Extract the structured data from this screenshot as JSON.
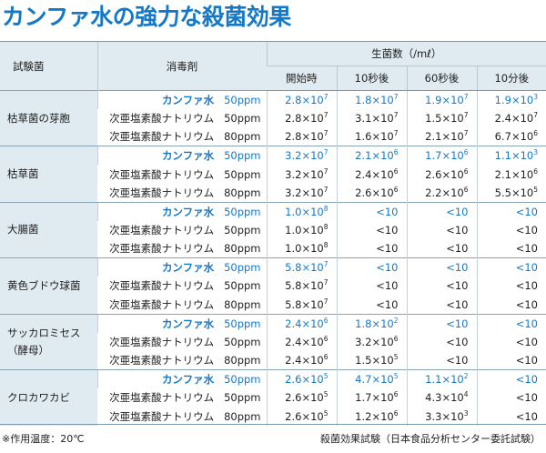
{
  "title": "カンファ水の強力な殺菌効果",
  "header": {
    "organism": "試験菌",
    "disinfectant": "消毒剤",
    "count": "生菌数（/mℓ）",
    "times": [
      "開始時",
      "10秒後",
      "60秒後",
      "10分後"
    ]
  },
  "groups": [
    {
      "organism_lines": [
        "枯草菌の芽胞"
      ],
      "rows": [
        {
          "agent": "カンファ水",
          "conc": "50ppm",
          "highlight": true,
          "values": [
            [
              "2.8×10",
              "7"
            ],
            [
              "1.8×10",
              "7"
            ],
            [
              "1.9×10",
              "7"
            ],
            [
              "1.9×10",
              "3"
            ]
          ],
          "blue": [
            true,
            true,
            true,
            true
          ]
        },
        {
          "agent": "次亜塩素酸ナトリウム",
          "conc": "50ppm",
          "highlight": false,
          "values": [
            [
              "2.8×10",
              "7"
            ],
            [
              "3.1×10",
              "7"
            ],
            [
              "1.5×10",
              "7"
            ],
            [
              "2.4×10",
              "7"
            ]
          ],
          "blue": [
            false,
            false,
            false,
            false
          ]
        },
        {
          "agent": "次亜塩素酸ナトリウム",
          "conc": "80ppm",
          "highlight": false,
          "values": [
            [
              "2.8×10",
              "7"
            ],
            [
              "1.6×10",
              "7"
            ],
            [
              "2.1×10",
              "7"
            ],
            [
              "6.7×10",
              "6"
            ]
          ],
          "blue": [
            false,
            false,
            false,
            false
          ]
        }
      ]
    },
    {
      "organism_lines": [
        "枯草菌"
      ],
      "rows": [
        {
          "agent": "カンファ水",
          "conc": "50ppm",
          "highlight": true,
          "values": [
            [
              "3.2×10",
              "7"
            ],
            [
              "2.1×10",
              "6"
            ],
            [
              "1.7×10",
              "6"
            ],
            [
              "1.1×10",
              "3"
            ]
          ],
          "blue": [
            true,
            true,
            true,
            true
          ]
        },
        {
          "agent": "次亜塩素酸ナトリウム",
          "conc": "50ppm",
          "highlight": false,
          "values": [
            [
              "3.2×10",
              "7"
            ],
            [
              "2.4×10",
              "6"
            ],
            [
              "2.6×10",
              "6"
            ],
            [
              "2.1×10",
              "6"
            ]
          ],
          "blue": [
            false,
            false,
            false,
            false
          ]
        },
        {
          "agent": "次亜塩素酸ナトリウム",
          "conc": "80ppm",
          "highlight": false,
          "values": [
            [
              "3.2×10",
              "7"
            ],
            [
              "2.6×10",
              "6"
            ],
            [
              "2.2×10",
              "6"
            ],
            [
              "5.5×10",
              "5"
            ]
          ],
          "blue": [
            false,
            false,
            false,
            false
          ]
        }
      ]
    },
    {
      "organism_lines": [
        "大腸菌"
      ],
      "rows": [
        {
          "agent": "カンファ水",
          "conc": "50ppm",
          "highlight": true,
          "values": [
            [
              "1.0×10",
              "8"
            ],
            [
              "<10",
              ""
            ],
            [
              "<10",
              ""
            ],
            [
              "<10",
              ""
            ]
          ],
          "blue": [
            true,
            true,
            true,
            true
          ]
        },
        {
          "agent": "次亜塩素酸ナトリウム",
          "conc": "50ppm",
          "highlight": false,
          "values": [
            [
              "1.0×10",
              "8"
            ],
            [
              "<10",
              ""
            ],
            [
              "<10",
              ""
            ],
            [
              "<10",
              ""
            ]
          ],
          "blue": [
            false,
            false,
            false,
            false
          ]
        },
        {
          "agent": "次亜塩素酸ナトリウム",
          "conc": "80ppm",
          "highlight": false,
          "values": [
            [
              "1.0×10",
              "8"
            ],
            [
              "<10",
              ""
            ],
            [
              "<10",
              ""
            ],
            [
              "<10",
              ""
            ]
          ],
          "blue": [
            false,
            false,
            false,
            false
          ]
        }
      ]
    },
    {
      "organism_lines": [
        "黄色ブドウ球菌"
      ],
      "rows": [
        {
          "agent": "カンファ水",
          "conc": "50ppm",
          "highlight": true,
          "values": [
            [
              "5.8×10",
              "7"
            ],
            [
              "<10",
              ""
            ],
            [
              "<10",
              ""
            ],
            [
              "<10",
              ""
            ]
          ],
          "blue": [
            true,
            true,
            true,
            true
          ]
        },
        {
          "agent": "次亜塩素酸ナトリウム",
          "conc": "50ppm",
          "highlight": false,
          "values": [
            [
              "5.8×10",
              "7"
            ],
            [
              "<10",
              ""
            ],
            [
              "<10",
              ""
            ],
            [
              "<10",
              ""
            ]
          ],
          "blue": [
            false,
            false,
            false,
            false
          ]
        },
        {
          "agent": "次亜塩素酸ナトリウム",
          "conc": "80ppm",
          "highlight": false,
          "values": [
            [
              "5.8×10",
              "7"
            ],
            [
              "<10",
              ""
            ],
            [
              "<10",
              ""
            ],
            [
              "<10",
              ""
            ]
          ],
          "blue": [
            false,
            false,
            false,
            false
          ]
        }
      ]
    },
    {
      "organism_lines": [
        "サッカロミセス",
        "（酵母）"
      ],
      "rows": [
        {
          "agent": "カンファ水",
          "conc": "50ppm",
          "highlight": true,
          "values": [
            [
              "2.4×10",
              "6"
            ],
            [
              "1.8×10",
              "2"
            ],
            [
              "<10",
              ""
            ],
            [
              "<10",
              ""
            ]
          ],
          "blue": [
            true,
            true,
            true,
            true
          ]
        },
        {
          "agent": "次亜塩素酸ナトリウム",
          "conc": "50ppm",
          "highlight": false,
          "values": [
            [
              "2.4×10",
              "6"
            ],
            [
              "3.2×10",
              "6"
            ],
            [
              "<10",
              ""
            ],
            [
              "<10",
              ""
            ]
          ],
          "blue": [
            false,
            false,
            false,
            false
          ]
        },
        {
          "agent": "次亜塩素酸ナトリウム",
          "conc": "80ppm",
          "highlight": false,
          "values": [
            [
              "2.4×10",
              "6"
            ],
            [
              "1.5×10",
              "5"
            ],
            [
              "<10",
              ""
            ],
            [
              "<10",
              ""
            ]
          ],
          "blue": [
            false,
            false,
            false,
            false
          ]
        }
      ]
    },
    {
      "organism_lines": [
        "クロカワカビ"
      ],
      "rows": [
        {
          "agent": "カンファ水",
          "conc": "50ppm",
          "highlight": true,
          "values": [
            [
              "2.6×10",
              "5"
            ],
            [
              "4.7×10",
              "5"
            ],
            [
              "1.1×10",
              "2"
            ],
            [
              "<10",
              ""
            ]
          ],
          "blue": [
            true,
            true,
            true,
            true
          ]
        },
        {
          "agent": "次亜塩素酸ナトリウム",
          "conc": "50ppm",
          "highlight": false,
          "values": [
            [
              "2.6×10",
              "5"
            ],
            [
              "1.7×10",
              "6"
            ],
            [
              "4.3×10",
              "4"
            ],
            [
              "<10",
              ""
            ]
          ],
          "blue": [
            false,
            false,
            false,
            false
          ]
        },
        {
          "agent": "次亜塩素酸ナトリウム",
          "conc": "80ppm",
          "highlight": false,
          "values": [
            [
              "2.6×10",
              "5"
            ],
            [
              "1.2×10",
              "6"
            ],
            [
              "3.3×10",
              "3"
            ],
            [
              "<10",
              ""
            ]
          ],
          "blue": [
            false,
            false,
            false,
            false
          ]
        }
      ]
    }
  ],
  "footnote_left": "※作用温度：20℃",
  "footnote_right": "殺菌効果試験（日本食品分析センター委託試験）",
  "colors": {
    "accent": "#1478c8",
    "header_bg": "#dfeaf1"
  }
}
